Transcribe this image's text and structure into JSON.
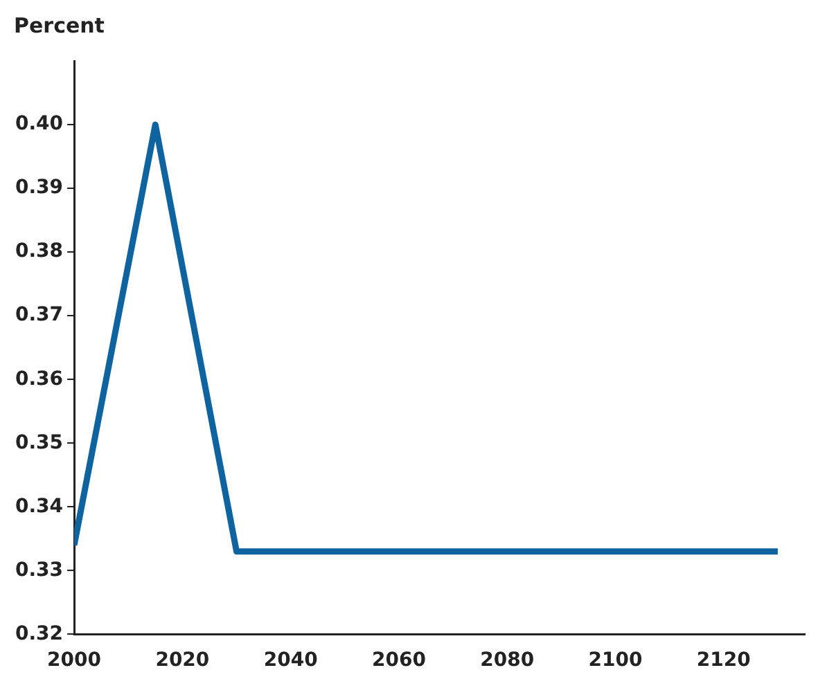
{
  "chart_data": {
    "type": "line",
    "ylabel": "Percent",
    "x": [
      2000,
      2015,
      2030,
      2130
    ],
    "series": [
      {
        "color": "#0f64a0",
        "values": [
          0.334,
          0.4,
          0.333,
          0.333
        ]
      }
    ],
    "xlim": [
      2000,
      2135
    ],
    "xticks": [
      2000,
      2020,
      2040,
      2060,
      2080,
      2100,
      2120
    ],
    "ylim": [
      0.32,
      0.41
    ],
    "yticks": [
      {
        "value": 0.32,
        "label": "0.32"
      },
      {
        "value": 0.33,
        "label": "0.33"
      },
      {
        "value": 0.34,
        "label": "0.34"
      },
      {
        "value": 0.35,
        "label": "0.35"
      },
      {
        "value": 0.36,
        "label": "0.36"
      },
      {
        "value": 0.37,
        "label": "0.37"
      },
      {
        "value": 0.38,
        "label": "0.38"
      },
      {
        "value": 0.39,
        "label": "0.39"
      },
      {
        "value": 0.4,
        "label": "0.40"
      }
    ],
    "grid": false,
    "marker": "none",
    "line_style": "solid"
  }
}
